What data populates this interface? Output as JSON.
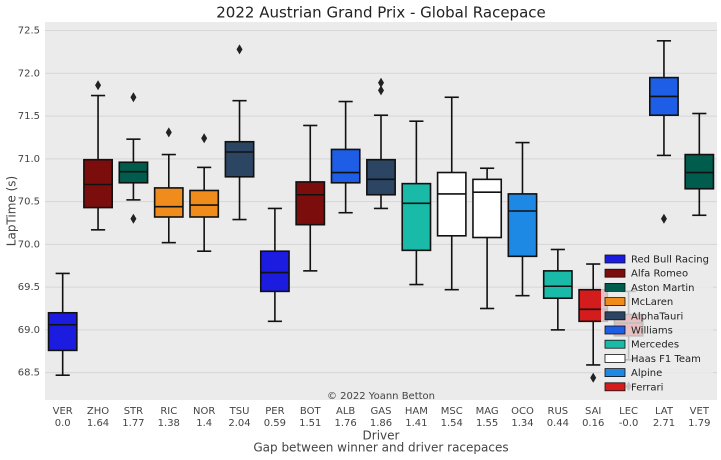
{
  "chart_data": {
    "type": "box",
    "title": "2022 Austrian Grand Prix - Global Racepace",
    "xlabel": "Driver",
    "xlabel2": "Gap between winner and driver racepaces",
    "ylabel": "LapTime (s)",
    "annotation": "© 2022 Yoann Betton",
    "categories": [
      "VER",
      "ZHO",
      "STR",
      "RIC",
      "NOR",
      "TSU",
      "PER",
      "BOT",
      "ALB",
      "GAS",
      "HAM",
      "MSC",
      "MAG",
      "OCO",
      "RUS",
      "SAI",
      "LEC",
      "LAT",
      "VET"
    ],
    "gaps": [
      "0.0",
      "1.64",
      "1.77",
      "1.38",
      "1.4",
      "2.04",
      "0.59",
      "1.51",
      "1.76",
      "1.86",
      "1.41",
      "1.54",
      "1.55",
      "1.34",
      "0.44",
      "0.16",
      "-0.0",
      "2.71",
      "1.79"
    ],
    "boxes": [
      {
        "whislo": 68.47,
        "q1": 68.76,
        "med": 69.06,
        "q3": 69.2,
        "whishi": 69.66,
        "fliers": [],
        "color": "#1c1ce0"
      },
      {
        "whislo": 70.17,
        "q1": 70.43,
        "med": 70.7,
        "q3": 70.99,
        "whishi": 71.74,
        "fliers": [
          71.86
        ],
        "color": "#7b0d0d"
      },
      {
        "whislo": 70.52,
        "q1": 70.72,
        "med": 70.85,
        "q3": 70.96,
        "whishi": 71.23,
        "fliers": [
          71.72,
          70.3
        ],
        "color": "#005c4c"
      },
      {
        "whislo": 70.02,
        "q1": 70.32,
        "med": 70.44,
        "q3": 70.66,
        "whishi": 71.05,
        "fliers": [
          71.31
        ],
        "color": "#f08c1c"
      },
      {
        "whislo": 69.92,
        "q1": 70.32,
        "med": 70.46,
        "q3": 70.63,
        "whishi": 70.9,
        "fliers": [
          71.24
        ],
        "color": "#f08c1c"
      },
      {
        "whislo": 70.29,
        "q1": 70.79,
        "med": 71.08,
        "q3": 71.2,
        "whishi": 71.68,
        "fliers": [
          72.28
        ],
        "color": "#2b4562"
      },
      {
        "whislo": 69.1,
        "q1": 69.45,
        "med": 69.67,
        "q3": 69.92,
        "whishi": 70.42,
        "fliers": [],
        "color": "#1c1ce0"
      },
      {
        "whislo": 69.69,
        "q1": 70.23,
        "med": 70.58,
        "q3": 70.73,
        "whishi": 71.39,
        "fliers": [],
        "color": "#7b0d0d"
      },
      {
        "whislo": 70.37,
        "q1": 70.72,
        "med": 70.84,
        "q3": 71.11,
        "whishi": 71.67,
        "fliers": [],
        "color": "#1e5ee6"
      },
      {
        "whislo": 70.42,
        "q1": 70.58,
        "med": 70.76,
        "q3": 70.99,
        "whishi": 71.51,
        "fliers": [
          71.89,
          71.8
        ],
        "color": "#2b4562"
      },
      {
        "whislo": 69.53,
        "q1": 69.93,
        "med": 70.48,
        "q3": 70.71,
        "whishi": 71.44,
        "fliers": [],
        "color": "#19bba8"
      },
      {
        "whislo": 69.47,
        "q1": 70.1,
        "med": 70.59,
        "q3": 70.84,
        "whishi": 71.72,
        "fliers": [],
        "color": "#ffffff"
      },
      {
        "whislo": 69.25,
        "q1": 70.08,
        "med": 70.61,
        "q3": 70.76,
        "whishi": 70.89,
        "fliers": [],
        "color": "#ffffff"
      },
      {
        "whislo": 69.4,
        "q1": 69.86,
        "med": 70.39,
        "q3": 70.59,
        "whishi": 71.19,
        "fliers": [],
        "color": "#1e88e5"
      },
      {
        "whislo": 69.0,
        "q1": 69.37,
        "med": 69.51,
        "q3": 69.69,
        "whishi": 69.94,
        "fliers": [],
        "color": "#19bba8"
      },
      {
        "whislo": 68.59,
        "q1": 69.1,
        "med": 69.24,
        "q3": 69.47,
        "whishi": 69.77,
        "fliers": [
          68.44
        ],
        "color": "#d41c1c"
      },
      {
        "whislo": 68.65,
        "q1": 68.93,
        "med": 69.08,
        "q3": 69.18,
        "whishi": 69.45,
        "fliers": [
          68.34
        ],
        "color": "#d41c1c"
      },
      {
        "whislo": 71.04,
        "q1": 71.51,
        "med": 71.73,
        "q3": 71.95,
        "whishi": 72.38,
        "fliers": [
          70.3
        ],
        "color": "#1e5ee6"
      },
      {
        "whislo": 70.34,
        "q1": 70.65,
        "med": 70.84,
        "q3": 71.05,
        "whishi": 71.53,
        "fliers": [],
        "color": "#005c4c"
      }
    ],
    "legend": [
      {
        "name": "Red Bull Racing",
        "color": "#1c1ce0"
      },
      {
        "name": "Alfa Romeo",
        "color": "#7b0d0d"
      },
      {
        "name": "Aston Martin",
        "color": "#005c4c"
      },
      {
        "name": "McLaren",
        "color": "#f08c1c"
      },
      {
        "name": "AlphaTauri",
        "color": "#2b4562"
      },
      {
        "name": "Williams",
        "color": "#1e5ee6"
      },
      {
        "name": "Mercedes",
        "color": "#19bba8"
      },
      {
        "name": "Haas F1 Team",
        "color": "#ffffff"
      },
      {
        "name": "Alpine",
        "color": "#1e88e5"
      },
      {
        "name": "Ferrari",
        "color": "#d41c1c"
      }
    ],
    "legend_position": "lower right",
    "ylim": [
      68.18,
      72.6
    ],
    "yticks": [
      68.5,
      {
        "value": 69,
        "label": "69.0"
      },
      69.5,
      {
        "value": 70,
        "label": "70.0"
      },
      70.5,
      {
        "value": 71,
        "label": "71.0"
      },
      71.5,
      {
        "value": 72,
        "label": "72.0"
      },
      72.5
    ],
    "grid": true
  }
}
